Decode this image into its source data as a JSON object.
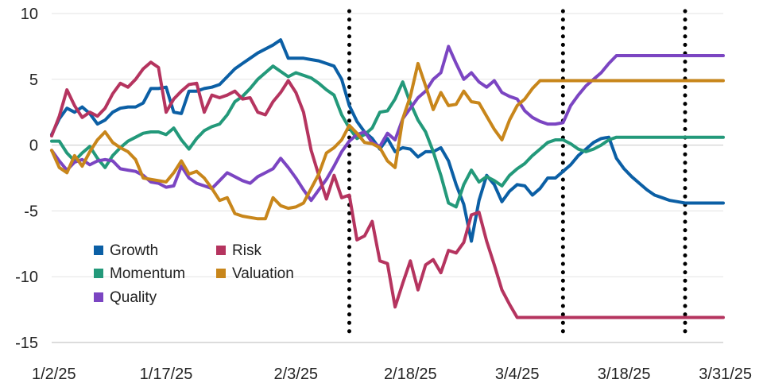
{
  "chart_data": {
    "type": "line",
    "title": "",
    "xlabel": "",
    "ylabel": "",
    "ylim": [
      -15,
      10
    ],
    "yticks": [
      10,
      5,
      0,
      -5,
      -10,
      -15
    ],
    "xlim": [
      "2025-01-02",
      "2025-03-31"
    ],
    "xticks": [
      {
        "date": "2025-01-02",
        "label": "1/2/25"
      },
      {
        "date": "2025-01-17",
        "label": "1/17/25"
      },
      {
        "date": "2025-02-03",
        "label": "2/3/25"
      },
      {
        "date": "2025-02-18",
        "label": "2/18/25"
      },
      {
        "date": "2025-03-04",
        "label": "3/4/25"
      },
      {
        "date": "2025-03-18",
        "label": "3/18/25"
      },
      {
        "date": "2025-03-31",
        "label": "3/31/25"
      }
    ],
    "vlines": [
      "2025-02-10",
      "2025-03-10",
      "2025-03-26"
    ],
    "gridlines": "horizontal",
    "legend_position": "bottom-left",
    "x": [
      "2025-01-02",
      "2025-01-03",
      "2025-01-04",
      "2025-01-05",
      "2025-01-06",
      "2025-01-07",
      "2025-01-08",
      "2025-01-09",
      "2025-01-10",
      "2025-01-11",
      "2025-01-12",
      "2025-01-13",
      "2025-01-14",
      "2025-01-15",
      "2025-01-16",
      "2025-01-17",
      "2025-01-18",
      "2025-01-19",
      "2025-01-20",
      "2025-01-21",
      "2025-01-22",
      "2025-01-23",
      "2025-01-24",
      "2025-01-25",
      "2025-01-26",
      "2025-01-27",
      "2025-01-28",
      "2025-01-29",
      "2025-01-30",
      "2025-01-31",
      "2025-02-01",
      "2025-02-02",
      "2025-02-03",
      "2025-02-04",
      "2025-02-05",
      "2025-02-06",
      "2025-02-07",
      "2025-02-08",
      "2025-02-09",
      "2025-02-10",
      "2025-02-11",
      "2025-02-12",
      "2025-02-13",
      "2025-02-14",
      "2025-02-15",
      "2025-02-16",
      "2025-02-17",
      "2025-02-18",
      "2025-02-19",
      "2025-02-20",
      "2025-02-21",
      "2025-02-22",
      "2025-02-23",
      "2025-02-24",
      "2025-02-25",
      "2025-02-26",
      "2025-02-27",
      "2025-02-28",
      "2025-03-01",
      "2025-03-02",
      "2025-03-03",
      "2025-03-04",
      "2025-03-05",
      "2025-03-06",
      "2025-03-07",
      "2025-03-08",
      "2025-03-09",
      "2025-03-10",
      "2025-03-11",
      "2025-03-12",
      "2025-03-13",
      "2025-03-14",
      "2025-03-15",
      "2025-03-16",
      "2025-03-17",
      "2025-03-18",
      "2025-03-19",
      "2025-03-20",
      "2025-03-21",
      "2025-03-22",
      "2025-03-23",
      "2025-03-24",
      "2025-03-25",
      "2025-03-26",
      "2025-03-27",
      "2025-03-28",
      "2025-03-29",
      "2025-03-30",
      "2025-03-31"
    ],
    "series": [
      {
        "name": "Growth",
        "color": "#0b5fa5",
        "values": [
          0.8,
          2.0,
          2.8,
          2.5,
          2.9,
          2.4,
          1.6,
          1.9,
          2.5,
          2.8,
          2.9,
          2.9,
          3.2,
          4.3,
          4.3,
          4.4,
          2.5,
          2.4,
          4.1,
          4.1,
          4.3,
          4.4,
          4.6,
          5.2,
          5.8,
          6.2,
          6.6,
          7.0,
          7.3,
          7.6,
          8.0,
          6.6,
          6.6,
          6.6,
          6.5,
          6.4,
          6.2,
          6.0,
          5.0,
          3.0,
          1.8,
          1.0,
          0.5,
          -0.3,
          0.5,
          -0.5,
          -0.2,
          -0.3,
          -0.9,
          -0.5,
          -0.5,
          -0.2,
          -1.2,
          -3.0,
          -4.5,
          -7.3,
          -4.2,
          -2.3,
          -3.0,
          -4.3,
          -3.5,
          -3.0,
          -3.1,
          -3.8,
          -3.3,
          -2.5,
          -2.5,
          -2.0,
          -1.5,
          -0.8,
          -0.3,
          0.2,
          0.5,
          0.6,
          -1.0,
          -1.8,
          -2.4,
          -2.9,
          -3.4,
          -3.8,
          -4.0,
          -4.2,
          -4.3,
          -4.4,
          -4.4,
          -4.4,
          -4.4,
          -4.4,
          -4.4
        ]
      },
      {
        "name": "Momentum",
        "color": "#23997a",
        "values": [
          0.3,
          0.3,
          -0.6,
          -1.2,
          -0.6,
          -0.1,
          -1.0,
          -1.7,
          -0.8,
          -0.2,
          0.3,
          0.6,
          0.9,
          1.0,
          1.0,
          0.8,
          1.3,
          0.4,
          -0.3,
          0.5,
          1.1,
          1.4,
          1.6,
          2.3,
          3.3,
          3.7,
          4.3,
          5.0,
          5.5,
          6.0,
          5.6,
          5.2,
          5.5,
          5.3,
          5.1,
          4.7,
          4.2,
          3.8,
          2.3,
          1.3,
          0.5,
          0.8,
          1.3,
          2.5,
          2.6,
          3.5,
          4.8,
          3.2,
          1.9,
          1.0,
          -0.5,
          -2.3,
          -4.4,
          -4.7,
          -3.0,
          -1.9,
          -2.8,
          -2.4,
          -2.7,
          -3.1,
          -2.3,
          -1.8,
          -1.4,
          -0.8,
          -0.3,
          0.2,
          0.4,
          0.4,
          0.1,
          -0.3,
          -0.5,
          -0.3,
          0.0,
          0.4,
          0.6,
          0.6,
          0.6,
          0.6,
          0.6,
          0.6,
          0.6,
          0.6,
          0.6,
          0.6,
          0.6,
          0.6,
          0.6,
          0.6,
          0.6
        ]
      },
      {
        "name": "Quality",
        "color": "#7b45c2",
        "values": [
          -0.4,
          -1.2,
          -1.9,
          -1.3,
          -1.1,
          -1.5,
          -1.2,
          -1.1,
          -1.2,
          -1.8,
          -1.9,
          -2.0,
          -2.3,
          -2.8,
          -2.9,
          -3.2,
          -3.1,
          -1.6,
          -2.5,
          -2.9,
          -3.1,
          -3.3,
          -2.7,
          -2.1,
          -2.4,
          -2.7,
          -2.9,
          -2.4,
          -2.1,
          -1.8,
          -1.0,
          -1.7,
          -2.5,
          -3.4,
          -4.2,
          -3.4,
          -2.6,
          -1.6,
          -0.5,
          0.3,
          0.8,
          1.0,
          0.2,
          -0.1,
          0.9,
          0.4,
          2.0,
          2.8,
          3.6,
          4.1,
          5.0,
          5.5,
          7.5,
          6.2,
          5.0,
          5.5,
          4.8,
          4.4,
          4.9,
          4.0,
          3.7,
          3.5,
          2.6,
          2.1,
          1.8,
          1.6,
          1.6,
          1.7,
          3.0,
          3.8,
          4.5,
          5.0,
          5.5,
          6.2,
          6.8,
          6.8,
          6.8,
          6.8,
          6.8,
          6.8,
          6.8,
          6.8,
          6.8,
          6.8,
          6.8,
          6.8,
          6.8,
          6.8,
          6.8
        ]
      },
      {
        "name": "Risk",
        "color": "#b5345f",
        "values": [
          0.7,
          2.2,
          4.2,
          3.0,
          2.1,
          2.5,
          2.2,
          2.8,
          3.9,
          4.7,
          4.4,
          5.0,
          5.8,
          6.3,
          5.9,
          2.5,
          3.5,
          4.1,
          4.6,
          4.7,
          2.5,
          3.8,
          3.6,
          3.8,
          4.1,
          3.5,
          3.6,
          2.5,
          2.3,
          3.3,
          4.0,
          4.9,
          4.0,
          2.5,
          -0.4,
          -2.3,
          -4.1,
          -2.3,
          -4.0,
          -3.8,
          -7.2,
          -6.9,
          -5.8,
          -8.8,
          -9.0,
          -12.3,
          -10.5,
          -8.8,
          -11.0,
          -9.1,
          -8.7,
          -9.7,
          -8.0,
          -8.2,
          -7.4,
          -5.3,
          -5.1,
          -7.3,
          -9.1,
          -11.0,
          -12.1,
          -13.1,
          -13.1,
          -13.1,
          -13.1,
          -13.1,
          -13.1,
          -13.1,
          -13.1,
          -13.1,
          -13.1,
          -13.1,
          -13.1,
          -13.1,
          -13.1,
          -13.1,
          -13.1,
          -13.1,
          -13.1,
          -13.1,
          -13.1,
          -13.1,
          -13.1,
          -13.1,
          -13.1,
          -13.1,
          -13.1,
          -13.1,
          -13.1
        ]
      },
      {
        "name": "Valuation",
        "color": "#c8861b",
        "values": [
          -0.4,
          -1.7,
          -2.1,
          -0.8,
          -1.6,
          -0.5,
          0.4,
          1.0,
          0.2,
          -0.2,
          -0.5,
          -1.1,
          -2.5,
          -2.6,
          -2.7,
          -2.8,
          -2.1,
          -1.2,
          -2.2,
          -2.0,
          -2.5,
          -3.3,
          -4.2,
          -4.0,
          -5.2,
          -5.4,
          -5.5,
          -5.6,
          -5.6,
          -4.0,
          -4.6,
          -4.8,
          -4.7,
          -4.4,
          -3.3,
          -2.2,
          -0.6,
          -0.2,
          0.4,
          1.5,
          0.9,
          0.2,
          0.1,
          -0.2,
          -1.2,
          -1.7,
          2.0,
          3.7,
          6.2,
          4.5,
          2.7,
          4.0,
          3.0,
          3.1,
          4.1,
          3.3,
          3.2,
          2.2,
          1.2,
          0.4,
          1.9,
          3.0,
          3.5,
          4.3,
          4.9,
          4.9,
          4.9,
          4.9,
          4.9,
          4.9,
          4.9,
          4.9,
          4.9,
          4.9,
          4.9,
          4.9,
          4.9,
          4.9,
          4.9,
          4.9,
          4.9,
          4.9,
          4.9,
          4.9,
          4.9,
          4.9,
          4.9,
          4.9,
          4.9
        ]
      }
    ]
  },
  "legend": [
    {
      "label": "Growth",
      "color": "#0b5fa5"
    },
    {
      "label": "Risk",
      "color": "#b5345f"
    },
    {
      "label": "Momentum",
      "color": "#23997a"
    },
    {
      "label": "Valuation",
      "color": "#c8861b"
    },
    {
      "label": "Quality",
      "color": "#7b45c2"
    }
  ]
}
